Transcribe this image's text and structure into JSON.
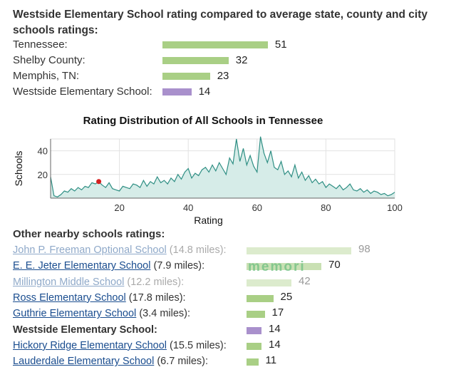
{
  "comparison": {
    "title": "Westside Elementary School rating compared to average state, county and city schools ratings:",
    "rows": [
      {
        "label": "Tennessee:",
        "value": "51",
        "color": "#a9cf85"
      },
      {
        "label": "Shelby County:",
        "value": "32",
        "color": "#a9cf85"
      },
      {
        "label": "Memphis, TN:",
        "value": "23",
        "color": "#a9cf85"
      },
      {
        "label": "Westside Elementary School:",
        "value": "14",
        "color": "#a990cc"
      }
    ]
  },
  "chart_data": {
    "type": "area",
    "title": "Rating Distribution of All Schools in Tennessee",
    "xlabel": "Rating",
    "ylabel": "Schools",
    "xlim": [
      0,
      100
    ],
    "ylim": [
      0,
      50
    ],
    "xticks": [
      "20",
      "40",
      "60",
      "80",
      "100"
    ],
    "yticks": [
      "20",
      "40"
    ],
    "highlight": {
      "x": 14,
      "y": 14,
      "color": "#d42020"
    },
    "x": [
      0,
      1,
      2,
      3,
      4,
      5,
      6,
      7,
      8,
      9,
      10,
      11,
      12,
      13,
      14,
      15,
      16,
      17,
      18,
      19,
      20,
      21,
      22,
      23,
      24,
      25,
      26,
      27,
      28,
      29,
      30,
      31,
      32,
      33,
      34,
      35,
      36,
      37,
      38,
      39,
      40,
      41,
      42,
      43,
      44,
      45,
      46,
      47,
      48,
      49,
      50,
      51,
      52,
      53,
      54,
      55,
      56,
      57,
      58,
      59,
      60,
      61,
      62,
      63,
      64,
      65,
      66,
      67,
      68,
      69,
      70,
      71,
      72,
      73,
      74,
      75,
      76,
      77,
      78,
      79,
      80,
      81,
      82,
      83,
      84,
      85,
      86,
      87,
      88,
      89,
      90,
      91,
      92,
      93,
      94,
      95,
      96,
      97,
      98,
      99,
      100
    ],
    "y": [
      18,
      2,
      1,
      3,
      6,
      5,
      8,
      6,
      9,
      7,
      10,
      9,
      13,
      12,
      14,
      11,
      9,
      13,
      8,
      7,
      6,
      10,
      9,
      8,
      12,
      11,
      9,
      15,
      10,
      14,
      12,
      18,
      13,
      15,
      12,
      17,
      14,
      20,
      16,
      22,
      25,
      17,
      21,
      19,
      24,
      26,
      22,
      28,
      23,
      30,
      25,
      20,
      34,
      29,
      50,
      31,
      42,
      28,
      36,
      27,
      22,
      52,
      38,
      30,
      40,
      26,
      24,
      31,
      20,
      23,
      18,
      28,
      17,
      22,
      15,
      19,
      13,
      16,
      12,
      14,
      9,
      12,
      10,
      8,
      11,
      7,
      9,
      12,
      7,
      6,
      8,
      5,
      7,
      4,
      6,
      5,
      3,
      4,
      2,
      3,
      5
    ]
  },
  "nearby": {
    "title": "Other nearby schools ratings:",
    "watermark": "memori",
    "rows": [
      {
        "name": "John P. Freeman Optional School",
        "distance": "(14.8 miles):",
        "value": "98",
        "style": "link faded",
        "bar_color": "#dcebcd",
        "fraction": 0.98
      },
      {
        "name": "E. E. Jeter Elementary School",
        "distance": "(7.9 miles):",
        "value": "70",
        "style": "link",
        "bar_color": "#c9e0b3",
        "fraction": 0.7
      },
      {
        "name": "Millington Middle School",
        "distance": "(12.2 miles):",
        "value": "42",
        "style": "link faded",
        "bar_color": "#dcebcd",
        "fraction": 0.42
      },
      {
        "name": "Ross Elementary School",
        "distance": "(17.8 miles):",
        "value": "25",
        "style": "link",
        "bar_color": "#a9cf85",
        "fraction": 0.25
      },
      {
        "name": "Guthrie Elementary School",
        "distance": "(3.4 miles):",
        "value": "17",
        "style": "link",
        "bar_color": "#a9cf85",
        "fraction": 0.17
      },
      {
        "name": "Westside Elementary School:",
        "distance": "",
        "value": "14",
        "style": "bold",
        "bar_color": "#a990cc",
        "fraction": 0.14
      },
      {
        "name": "Hickory Ridge Elementary School",
        "distance": "(15.5 miles):",
        "value": "14",
        "style": "link",
        "bar_color": "#a9cf85",
        "fraction": 0.14
      },
      {
        "name": "Lauderdale Elementary School",
        "distance": "(6.7 miles):",
        "value": "11",
        "style": "link",
        "bar_color": "#a9cf85",
        "fraction": 0.11
      }
    ]
  }
}
